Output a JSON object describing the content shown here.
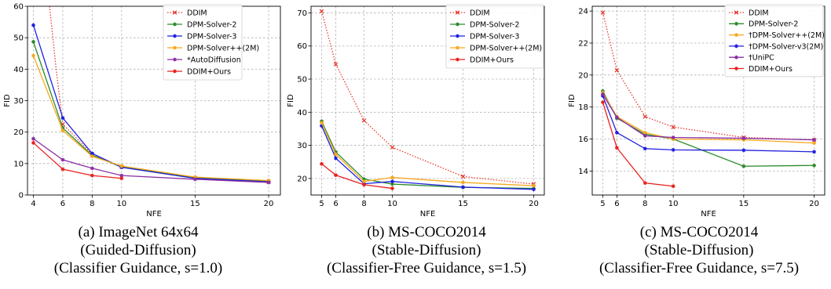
{
  "colors": {
    "DDIM": "#e8392f",
    "DPM-Solver-2": "#2a8a2a",
    "DPM-Solver-3": "#1f1fe0",
    "DPM-Solver++(2M)": "#f5a81c",
    "AutoDiffusion": "#8a2ea5",
    "Ours": "#e8211d"
  },
  "chart_data": [
    {
      "type": "line",
      "xlabel": "NFE",
      "ylabel": "FID",
      "xlim": [
        3.6,
        20.8
      ],
      "ylim": [
        0,
        60
      ],
      "xticks": [
        4,
        6,
        8,
        10,
        15,
        20
      ],
      "yticks": [
        0,
        10,
        20,
        30,
        40,
        50,
        60
      ],
      "grid": true,
      "legend_position": "top-right",
      "caption": [
        "(a) ImageNet 64x64",
        "(Guided-Diffusion)",
        "(Classifier Guidance, s=1.0)"
      ],
      "series": [
        {
          "name": "DDIM",
          "color": "#e8392f",
          "dash": "dotted",
          "x": [
            5.1,
            5.55,
            6,
            8,
            10,
            15,
            20
          ],
          "y": [
            60,
            40,
            22.5,
            13,
            9,
            5.4,
            4.1
          ]
        },
        {
          "name": "DPM-Solver-2",
          "color": "#2a8a2a",
          "x": [
            4,
            6,
            8,
            10,
            15,
            20
          ],
          "y": [
            48.7,
            21.3,
            12.6,
            8.9,
            5.5,
            4.5
          ]
        },
        {
          "name": "DPM-Solver-3",
          "color": "#1f1fe0",
          "x": [
            4,
            6,
            8,
            10,
            15,
            20
          ],
          "y": [
            54,
            24.5,
            13.2,
            8.8,
            5.3,
            4.2
          ]
        },
        {
          "name": "DPM-Solver++(2M)",
          "color": "#f5a81c",
          "x": [
            4,
            6,
            8,
            10,
            15,
            20
          ],
          "y": [
            44.3,
            20.5,
            12.3,
            9.2,
            5.7,
            4.6
          ]
        },
        {
          "name": "*AutoDiffusion",
          "color": "#8a2ea5",
          "x": [
            4,
            6,
            8,
            10,
            15,
            20
          ],
          "y": [
            17.9,
            11.2,
            8.5,
            6.2,
            5.0,
            4.0
          ]
        },
        {
          "name": "DDIM+Ours",
          "color": "#e8211d",
          "x": [
            4,
            6,
            8,
            10
          ],
          "y": [
            16.6,
            8.2,
            6.2,
            5.3
          ]
        }
      ]
    },
    {
      "type": "line",
      "xlabel": "NFE",
      "ylabel": "FID",
      "xlim": [
        4.25,
        20.75
      ],
      "ylim": [
        15,
        72
      ],
      "xticks": [
        5,
        6,
        8,
        10,
        15,
        20
      ],
      "yticks": [
        20,
        30,
        40,
        50,
        60,
        70
      ],
      "grid": true,
      "legend_position": "top-right",
      "caption": [
        "(b) MS-COCO2014",
        "(Stable-Diffusion)",
        "(Classifier-Free Guidance, s=1.5)"
      ],
      "series": [
        {
          "name": "DDIM",
          "color": "#e8392f",
          "dash": "dotted",
          "x": [
            5,
            6,
            8,
            10,
            15,
            20
          ],
          "y": [
            70.5,
            54.5,
            37.5,
            29.4,
            20.6,
            18.3
          ]
        },
        {
          "name": "DPM-Solver-2",
          "color": "#2a8a2a",
          "x": [
            5,
            6,
            8,
            10,
            15,
            20
          ],
          "y": [
            37.3,
            28,
            19.8,
            18.3,
            17.3,
            17
          ]
        },
        {
          "name": "DPM-Solver-3",
          "color": "#1f1fe0",
          "x": [
            5,
            6,
            8,
            10,
            15,
            20
          ],
          "y": [
            35.9,
            26.1,
            18.4,
            19.1,
            17.4,
            16.7
          ]
        },
        {
          "name": "DPM-Solver++(2M)",
          "color": "#f5a81c",
          "x": [
            5,
            6,
            8,
            10,
            15,
            20
          ],
          "y": [
            36.8,
            27.3,
            19.1,
            20.3,
            18.8,
            17.8
          ]
        },
        {
          "name": "DDIM+Ours",
          "color": "#e8211d",
          "x": [
            5,
            6,
            8,
            10
          ],
          "y": [
            24.4,
            21,
            18.1,
            17
          ]
        }
      ]
    },
    {
      "type": "line",
      "xlabel": "NFE",
      "ylabel": "FID",
      "xlim": [
        4.25,
        20.75
      ],
      "ylim": [
        12.5,
        24.3
      ],
      "xticks": [
        5,
        6,
        8,
        10,
        15,
        20
      ],
      "yticks": [
        14,
        16,
        18,
        20,
        22,
        24
      ],
      "grid": true,
      "legend_position": "top-right",
      "caption": [
        "(c) MS-COCO2014",
        "(Stable-Diffusion)",
        "(Classifier-Free Guidance, s=7.5)"
      ],
      "series": [
        {
          "name": "DDIM",
          "color": "#e8392f",
          "dash": "dotted",
          "x": [
            5,
            6,
            8,
            10,
            15,
            20
          ],
          "y": [
            23.9,
            20.3,
            17.4,
            16.75,
            16.1,
            15.95
          ]
        },
        {
          "name": "DPM-Solver-2",
          "color": "#2a8a2a",
          "x": [
            5,
            6,
            8,
            10,
            15,
            20
          ],
          "y": [
            19.0,
            17.3,
            16.3,
            16.0,
            14.3,
            14.35
          ]
        },
        {
          "name": "†DPM-Solver++(2M)",
          "color": "#f5a81c",
          "x": [
            5,
            6,
            8,
            10,
            15,
            20
          ],
          "y": [
            18.9,
            17.4,
            16.4,
            16.0,
            15.95,
            15.75
          ]
        },
        {
          "name": "†DPM-Solver-v3(2M)",
          "color": "#1f1fe0",
          "x": [
            5,
            6,
            8,
            10,
            15,
            20
          ],
          "y": [
            18.7,
            16.4,
            15.4,
            15.32,
            15.3,
            15.2
          ]
        },
        {
          "name": "†UniPC",
          "color": "#8a2ea5",
          "x": [
            5,
            6,
            8,
            10,
            15,
            20
          ],
          "y": [
            18.8,
            17.35,
            16.2,
            16.1,
            16.05,
            15.95
          ]
        },
        {
          "name": "DDIM+Ours",
          "color": "#e8211d",
          "x": [
            5,
            6,
            8,
            10
          ],
          "y": [
            18.3,
            15.45,
            13.25,
            13.05
          ]
        }
      ]
    }
  ]
}
